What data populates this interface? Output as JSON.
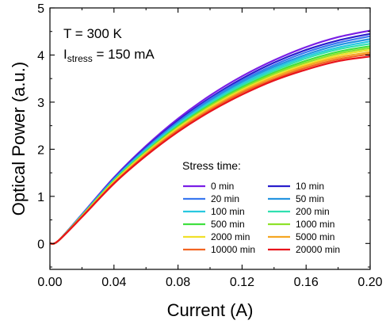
{
  "chart_data": {
    "type": "line",
    "xlabel": "Current (A)",
    "ylabel": "Optical Power (a.u.)",
    "xlim": [
      0.0,
      0.2
    ],
    "ylim": [
      -0.55,
      5.0
    ],
    "xticks": [
      "0.00",
      "0.04",
      "0.08",
      "0.12",
      "0.16",
      "0.20"
    ],
    "yticks": [
      "0",
      "1",
      "2",
      "3",
      "4",
      "5"
    ],
    "annotation": {
      "line1": "T = 300 K",
      "line2_prefix": "I",
      "line2_sub": "stress",
      "line2_suffix": " = 150 mA"
    },
    "legend": {
      "title": "Stress time:",
      "placement": "lower-right",
      "columns": 2
    },
    "x": [
      0.0,
      0.005,
      0.02,
      0.04,
      0.06,
      0.08,
      0.1,
      0.12,
      0.14,
      0.16,
      0.18,
      0.2
    ],
    "series": [
      {
        "name": "0 min",
        "color": "#7a1fe6",
        "values": [
          0.0,
          0.05,
          0.62,
          1.4,
          2.07,
          2.65,
          3.14,
          3.55,
          3.89,
          4.17,
          4.38,
          4.52
        ]
      },
      {
        "name": "10 min",
        "color": "#2a1fcc",
        "values": [
          0.0,
          0.05,
          0.61,
          1.38,
          2.04,
          2.61,
          3.09,
          3.5,
          3.84,
          4.11,
          4.31,
          4.45
        ]
      },
      {
        "name": "20 min",
        "color": "#3a78f0",
        "values": [
          0.0,
          0.05,
          0.61,
          1.37,
          2.02,
          2.58,
          3.06,
          3.46,
          3.79,
          4.06,
          4.26,
          4.4
        ]
      },
      {
        "name": "50 min",
        "color": "#2595e0",
        "values": [
          0.0,
          0.05,
          0.6,
          1.36,
          2.0,
          2.56,
          3.03,
          3.43,
          3.75,
          4.01,
          4.21,
          4.34
        ]
      },
      {
        "name": "100 min",
        "color": "#28c8e0",
        "values": [
          0.0,
          0.05,
          0.6,
          1.35,
          1.99,
          2.54,
          3.0,
          3.39,
          3.71,
          3.97,
          4.16,
          4.29
        ]
      },
      {
        "name": "200 min",
        "color": "#30e0b0",
        "values": [
          0.0,
          0.05,
          0.59,
          1.34,
          1.97,
          2.51,
          2.97,
          3.36,
          3.67,
          3.93,
          4.12,
          4.24
        ]
      },
      {
        "name": "500 min",
        "color": "#40e040",
        "values": [
          0.0,
          0.05,
          0.59,
          1.33,
          1.95,
          2.49,
          2.94,
          3.32,
          3.63,
          3.88,
          4.07,
          4.19
        ]
      },
      {
        "name": "1000 min",
        "color": "#8ee22a",
        "values": [
          0.0,
          0.05,
          0.58,
          1.32,
          1.94,
          2.47,
          2.92,
          3.29,
          3.6,
          3.84,
          4.03,
          4.15
        ]
      },
      {
        "name": "2000 min",
        "color": "#f0e02a",
        "values": [
          0.0,
          0.05,
          0.58,
          1.31,
          1.92,
          2.45,
          2.89,
          3.26,
          3.56,
          3.8,
          3.99,
          4.11
        ]
      },
      {
        "name": "5000 min",
        "color": "#f5a623",
        "values": [
          0.0,
          0.05,
          0.57,
          1.29,
          1.9,
          2.42,
          2.86,
          3.23,
          3.53,
          3.77,
          3.95,
          4.06
        ]
      },
      {
        "name": "10000 min",
        "color": "#f26522",
        "values": [
          0.0,
          0.05,
          0.57,
          1.28,
          1.88,
          2.4,
          2.83,
          3.2,
          3.49,
          3.73,
          3.91,
          4.02
        ]
      },
      {
        "name": "20000 min",
        "color": "#e8141c",
        "values": [
          0.0,
          0.05,
          0.56,
          1.27,
          1.86,
          2.37,
          2.8,
          3.16,
          3.46,
          3.69,
          3.87,
          3.97
        ]
      }
    ]
  }
}
